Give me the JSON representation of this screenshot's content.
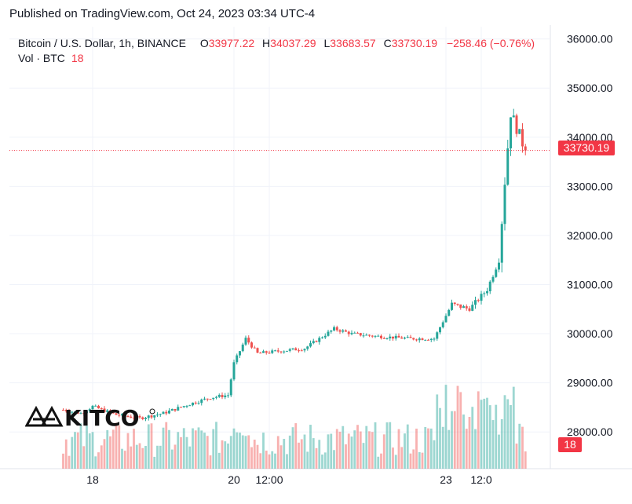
{
  "published": "Published on TradingView.com, Oct 24, 2023 03:34 UTC-4",
  "header": {
    "symbol": "Bitcoin / U.S. Dollar, 1h, BINANCE",
    "open_label": "O",
    "open": "33977.22",
    "high_label": "H",
    "high": "34037.29",
    "low_label": "L",
    "low": "33683.57",
    "close_label": "C",
    "close": "33730.19",
    "change": "−258.46 (−0.76%)"
  },
  "volume_legend": {
    "label": "Vol · BTC",
    "value": "18"
  },
  "last_price_tag": "33730.19",
  "volume_tag": "18",
  "logo_text": "KITCO",
  "colors": {
    "up": "#26a69a",
    "down": "#ef5350",
    "tag": "#f23645",
    "grid": "#f0f3fa"
  },
  "chart_data": {
    "type": "candlestick",
    "title": "Bitcoin / U.S. Dollar, 1h, BINANCE",
    "y_axis": {
      "min": 27300,
      "max": 36250,
      "ticks": [
        28000,
        29000,
        30000,
        31000,
        32000,
        33000,
        34000,
        35000,
        36000
      ],
      "position": "right"
    },
    "x_axis": {
      "ticks": [
        "18",
        "20",
        "12:00",
        "23",
        "12:0"
      ]
    },
    "last_price": 33730.19,
    "grid": true,
    "series": [
      {
        "name": "Bitcoin / U.S. Dollar",
        "control_points": [
          {
            "t": "Oct 17 14:00",
            "price": 28450
          },
          {
            "t": "Oct 17 20:00",
            "price": 28380
          },
          {
            "t": "Oct 18 00:00",
            "price": 28520
          },
          {
            "t": "Oct 18 08:00",
            "price": 28350
          },
          {
            "t": "Oct 18 16:00",
            "price": 28280
          },
          {
            "t": "Oct 19 00:00",
            "price": 28380
          },
          {
            "t": "Oct 19 08:00",
            "price": 28550
          },
          {
            "t": "Oct 19 16:00",
            "price": 28700
          },
          {
            "t": "Oct 19 22:00",
            "price": 28750
          },
          {
            "t": "Oct 20 00:00",
            "price": 29400
          },
          {
            "t": "Oct 20 04:00",
            "price": 29900
          },
          {
            "t": "Oct 20 08:00",
            "price": 29600
          },
          {
            "t": "Oct 20 16:00",
            "price": 29650
          },
          {
            "t": "Oct 21 00:00",
            "price": 29700
          },
          {
            "t": "Oct 21 10:00",
            "price": 30100
          },
          {
            "t": "Oct 21 16:00",
            "price": 30000
          },
          {
            "t": "Oct 22 00:00",
            "price": 29950
          },
          {
            "t": "Oct 22 12:00",
            "price": 29900
          },
          {
            "t": "Oct 22 20:00",
            "price": 29900
          },
          {
            "t": "Oct 23 02:00",
            "price": 30600
          },
          {
            "t": "Oct 23 08:00",
            "price": 30500
          },
          {
            "t": "Oct 23 14:00",
            "price": 30900
          },
          {
            "t": "Oct 23 18:00",
            "price": 31500
          },
          {
            "t": "Oct 23 20:00",
            "price": 33100
          },
          {
            "t": "Oct 23 22:00",
            "price": 34500
          },
          {
            "t": "Oct 24 03:00",
            "price": 33730
          }
        ]
      }
    ]
  }
}
